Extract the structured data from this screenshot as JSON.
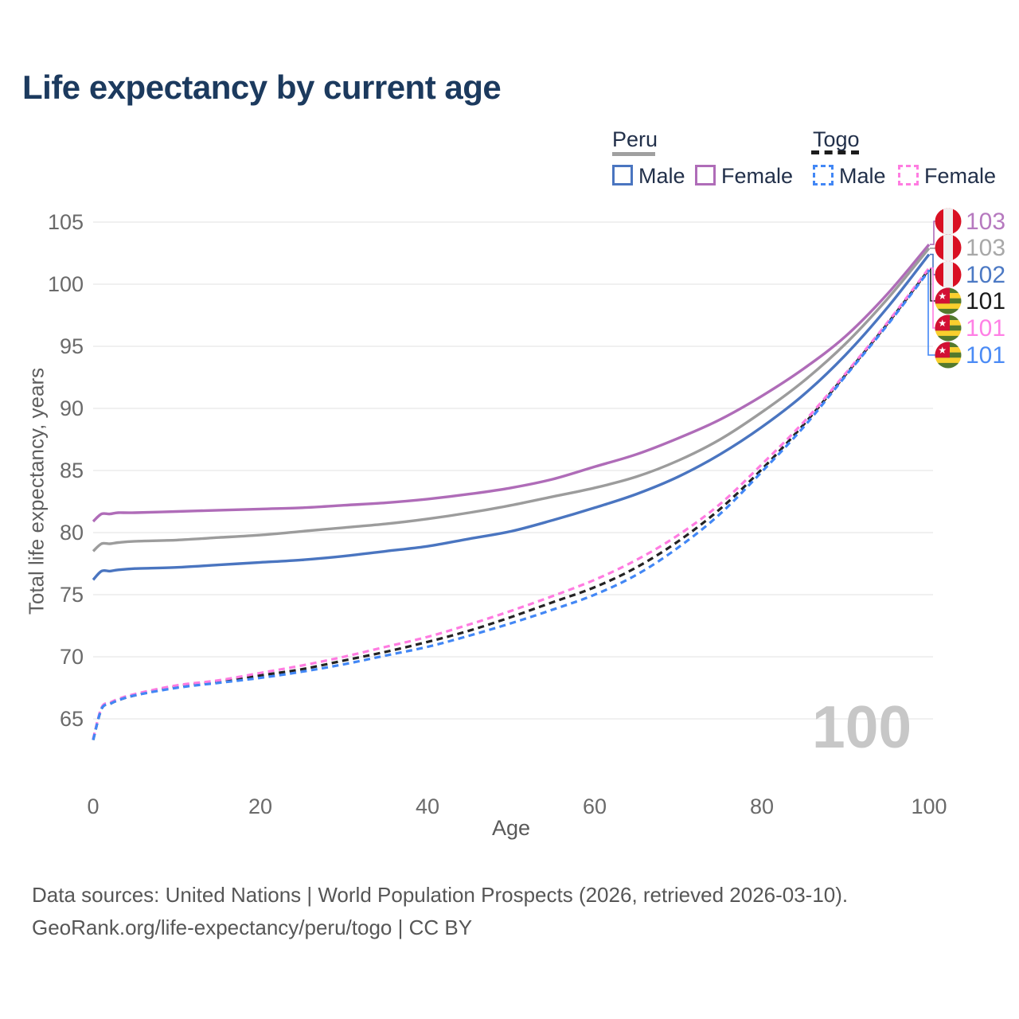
{
  "title": "Life expectancy by current age",
  "legend": {
    "groups": [
      {
        "label": "Peru",
        "underline_style": "solid",
        "underline_color": "#a0a0a0",
        "items": [
          {
            "label": "Male",
            "color": "#4a75c0",
            "dash": false
          },
          {
            "label": "Female",
            "color": "#af6cb8",
            "dash": false
          }
        ]
      },
      {
        "label": "Togo",
        "underline_style": "dashed",
        "underline_color": "#1c1c1c",
        "items": [
          {
            "label": "Male",
            "color": "#4287f5",
            "dash": true
          },
          {
            "label": "Female",
            "color": "#ff7ce1",
            "dash": true
          }
        ]
      }
    ]
  },
  "chart_data": {
    "type": "line",
    "title": "Life expectancy by current age",
    "xlabel": "Age",
    "ylabel": "Total life expectancy, years",
    "xlim": [
      0,
      100
    ],
    "ylim": [
      63,
      105
    ],
    "x_ticks": [
      0,
      20,
      40,
      60,
      80,
      100
    ],
    "y_ticks": [
      65,
      70,
      75,
      80,
      85,
      90,
      95,
      100,
      105
    ],
    "grid": "horizontal",
    "legend_position": "top-right",
    "age_indicator": "100",
    "x": [
      0,
      1,
      2,
      3,
      5,
      10,
      15,
      20,
      25,
      30,
      35,
      40,
      45,
      50,
      55,
      60,
      65,
      70,
      75,
      80,
      85,
      90,
      95,
      100
    ],
    "series": [
      {
        "name": "Peru Female",
        "country": "Peru",
        "sex": "Female",
        "flag": "peru",
        "dashed": false,
        "color": "#af6cb8",
        "end_label": "103",
        "label_color": "#b679bf",
        "values": [
          80.9,
          81.5,
          81.5,
          81.6,
          81.6,
          81.7,
          81.8,
          81.9,
          82.0,
          82.2,
          82.4,
          82.7,
          83.1,
          83.6,
          84.3,
          85.3,
          86.3,
          87.6,
          89.1,
          91.0,
          93.2,
          95.8,
          99.2,
          103.2
        ]
      },
      {
        "name": "Peru Both sexes",
        "country": "Peru",
        "sex": "Both",
        "flag": "peru",
        "dashed": false,
        "color": "#9c9c9c",
        "end_label": "103",
        "label_color": "#a8a8a8",
        "values": [
          78.5,
          79.1,
          79.1,
          79.2,
          79.3,
          79.4,
          79.6,
          79.8,
          80.1,
          80.4,
          80.7,
          81.1,
          81.6,
          82.2,
          82.9,
          83.6,
          84.5,
          85.8,
          87.5,
          89.7,
          92.2,
          95.2,
          98.8,
          102.9
        ]
      },
      {
        "name": "Peru Male",
        "country": "Peru",
        "sex": "Male",
        "flag": "peru",
        "dashed": false,
        "color": "#4a75c0",
        "end_label": "102",
        "label_color": "#4c79c4",
        "values": [
          76.2,
          76.9,
          76.9,
          77.0,
          77.1,
          77.2,
          77.4,
          77.6,
          77.8,
          78.1,
          78.5,
          78.9,
          79.5,
          80.1,
          81.0,
          82.0,
          83.1,
          84.5,
          86.3,
          88.5,
          91.1,
          94.3,
          98.1,
          102.4
        ]
      },
      {
        "name": "Togo Both sexes",
        "country": "Togo",
        "sex": "Both",
        "flag": "togo",
        "dashed": true,
        "color": "#232323",
        "end_label": "101",
        "label_color": "#1a1a1a",
        "values": [
          63.3,
          65.8,
          66.2,
          66.5,
          66.9,
          67.6,
          68.0,
          68.5,
          69.0,
          69.7,
          70.4,
          71.2,
          72.1,
          73.2,
          74.4,
          75.6,
          77.2,
          79.3,
          81.9,
          85.1,
          88.7,
          92.7,
          96.8,
          101.2
        ]
      },
      {
        "name": "Togo Female",
        "country": "Togo",
        "sex": "Female",
        "flag": "togo",
        "dashed": true,
        "color": "#ff7ce1",
        "end_label": "101",
        "label_color": "#ff80e5",
        "values": [
          63.4,
          65.9,
          66.3,
          66.6,
          67.0,
          67.7,
          68.1,
          68.7,
          69.3,
          70.0,
          70.8,
          71.6,
          72.6,
          73.7,
          74.9,
          76.2,
          77.8,
          79.8,
          82.3,
          85.5,
          88.9,
          92.8,
          96.9,
          101.3
        ]
      },
      {
        "name": "Togo Male",
        "country": "Togo",
        "sex": "Male",
        "flag": "togo",
        "dashed": true,
        "color": "#4287f5",
        "end_label": "101",
        "label_color": "#4b8bf5",
        "values": [
          63.3,
          65.8,
          66.2,
          66.5,
          66.9,
          67.5,
          67.9,
          68.3,
          68.8,
          69.4,
          70.1,
          70.8,
          71.7,
          72.7,
          73.8,
          75.0,
          76.6,
          78.8,
          81.5,
          84.9,
          88.5,
          92.6,
          96.7,
          101.1
        ]
      }
    ]
  },
  "footer": {
    "line1": "Data sources: United Nations | World Population Prospects (2026, retrieved 2026-03-10).",
    "line2": "GeoRank.org/life-expectancy/peru/togo | CC BY"
  }
}
